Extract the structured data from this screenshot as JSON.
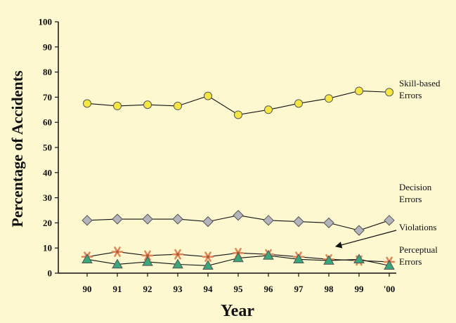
{
  "chart_data": {
    "type": "line",
    "title": "",
    "xlabel": "Year",
    "ylabel": "Percentage of Accidents",
    "x": [
      "90",
      "91",
      "92",
      "93",
      "94",
      "95",
      "96",
      "97",
      "98",
      "99",
      "'00"
    ],
    "ylim": [
      0,
      100
    ],
    "yticks": [
      0,
      10,
      20,
      30,
      40,
      50,
      60,
      70,
      80,
      90,
      100
    ],
    "grid": false,
    "legend": "inline labels at right",
    "background": "#fdf8d0",
    "series": [
      {
        "name": "Skill-based Errors",
        "label_lines": [
          "Skill-based",
          "Errors"
        ],
        "marker": "circle",
        "color": "#f5e642",
        "values": [
          67.5,
          66.5,
          67,
          66.5,
          70.5,
          63,
          65,
          67.5,
          69.5,
          72.5,
          72
        ]
      },
      {
        "name": "Decision Errors",
        "label_lines": [
          "Decision",
          "Errors"
        ],
        "marker": "diamond",
        "color": "#b4b4bc",
        "values": [
          21,
          21.5,
          21.5,
          21.5,
          20.5,
          23,
          21,
          20.5,
          20,
          17,
          21
        ]
      },
      {
        "name": "Violations",
        "label_lines": [
          "Violations"
        ],
        "marker": "star",
        "color": "#e0875a",
        "values": [
          6.5,
          8.5,
          7,
          7.5,
          6.5,
          8,
          7.5,
          6.5,
          5.5,
          5,
          4.5
        ]
      },
      {
        "name": "Perceptual Errors",
        "label_lines": [
          "Perceptual",
          "Errors"
        ],
        "marker": "triangle",
        "color": "#3aa77a",
        "values": [
          5.5,
          3.5,
          4.5,
          3.5,
          3,
          6,
          7,
          5.5,
          5,
          5.5,
          3
        ]
      }
    ]
  }
}
